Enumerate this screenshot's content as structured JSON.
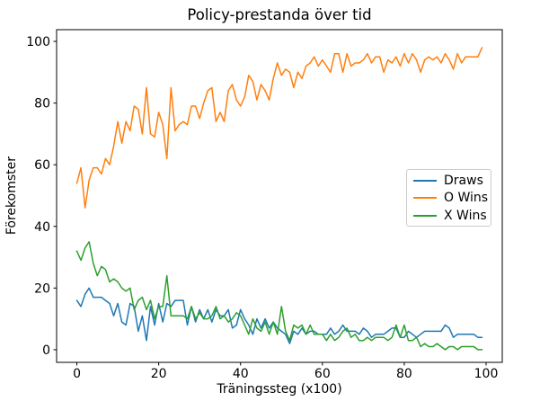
{
  "figure": {
    "background": "#ffffff",
    "text_color": "#000000",
    "spine_color": "#000000"
  },
  "chart_data": {
    "type": "line",
    "title": "Policy-prestanda över tid",
    "xlabel": "Träningssteg (x100)",
    "ylabel": "Förekomster",
    "grid": false,
    "legend_position": "center right",
    "x_ticks": [
      0,
      20,
      40,
      60,
      80,
      100
    ],
    "y_ticks": [
      0,
      20,
      40,
      60,
      80,
      100
    ],
    "xlim": [
      -4.95,
      103.95
    ],
    "ylim": [
      -4.1,
      103.8
    ],
    "x": [
      0,
      1,
      2,
      3,
      4,
      5,
      6,
      7,
      8,
      9,
      10,
      11,
      12,
      13,
      14,
      15,
      16,
      17,
      18,
      19,
      20,
      21,
      22,
      23,
      24,
      25,
      26,
      27,
      28,
      29,
      30,
      31,
      32,
      33,
      34,
      35,
      36,
      37,
      38,
      39,
      40,
      41,
      42,
      43,
      44,
      45,
      46,
      47,
      48,
      49,
      50,
      51,
      52,
      53,
      54,
      55,
      56,
      57,
      58,
      59,
      60,
      61,
      62,
      63,
      64,
      65,
      66,
      67,
      68,
      69,
      70,
      71,
      72,
      73,
      74,
      75,
      76,
      77,
      78,
      79,
      80,
      81,
      82,
      83,
      84,
      85,
      86,
      87,
      88,
      89,
      90,
      91,
      92,
      93,
      94,
      95,
      96,
      97,
      98,
      99
    ],
    "series": [
      {
        "name": "Draws",
        "color": "#1f77b4",
        "values": [
          16,
          14,
          18,
          20,
          17,
          17,
          17,
          16,
          15,
          11,
          15,
          9,
          8,
          15,
          14,
          6,
          11,
          3,
          14,
          8,
          15,
          9,
          15,
          14,
          16,
          16,
          16,
          8,
          14,
          9,
          13,
          10,
          13,
          9,
          13,
          11,
          11,
          13,
          7,
          8,
          13,
          10,
          8,
          5,
          10,
          7,
          10,
          7,
          9,
          7,
          6,
          5,
          2,
          6,
          5,
          7,
          5,
          6,
          6,
          5,
          5,
          5,
          7,
          5,
          6,
          8,
          6,
          6,
          6,
          5,
          7,
          6,
          4,
          5,
          5,
          5,
          6,
          7,
          7,
          4,
          4,
          6,
          5,
          4,
          5,
          6,
          6,
          6,
          6,
          6,
          8,
          7,
          4,
          5,
          5,
          5,
          5,
          5,
          4,
          4
        ]
      },
      {
        "name": "O Wins",
        "color": "#ff7f0e",
        "values": [
          54,
          59,
          46,
          55,
          59,
          59,
          57,
          62,
          60,
          66,
          74,
          67,
          74,
          71,
          79,
          78,
          70,
          85,
          70,
          69,
          77,
          73,
          62,
          85,
          71,
          73,
          74,
          73,
          79,
          79,
          75,
          80,
          84,
          85,
          74,
          77,
          74,
          84,
          86,
          81,
          79,
          82,
          89,
          87,
          81,
          86,
          84,
          81,
          88,
          93,
          89,
          91,
          90,
          85,
          90,
          88,
          92,
          93,
          95,
          92,
          94,
          92,
          90,
          96,
          96,
          90,
          96,
          92,
          93,
          93,
          94,
          96,
          93,
          95,
          95,
          90,
          94,
          93,
          95,
          92,
          96,
          93,
          96,
          94,
          90,
          94,
          95,
          94,
          95,
          93,
          96,
          94,
          91,
          96,
          93,
          95,
          95,
          95,
          95,
          98
        ]
      },
      {
        "name": "X Wins",
        "color": "#2ca02c",
        "values": [
          32,
          29,
          33,
          35,
          28,
          24,
          27,
          26,
          22,
          23,
          22,
          20,
          19,
          20,
          13,
          16,
          17,
          13,
          16,
          10,
          14,
          14,
          24,
          11,
          11,
          11,
          11,
          10,
          14,
          10,
          12,
          10,
          10,
          11,
          14,
          10,
          11,
          9,
          10,
          12,
          11,
          8,
          5,
          10,
          7,
          6,
          9,
          5,
          9,
          5,
          14,
          6,
          3,
          8,
          7,
          8,
          5,
          8,
          5,
          5,
          5,
          3,
          5,
          3,
          4,
          6,
          7,
          4,
          5,
          3,
          3,
          4,
          3,
          4,
          4,
          4,
          3,
          4,
          8,
          4,
          8,
          3,
          3,
          4,
          1,
          2,
          1,
          1,
          2,
          1,
          0,
          1,
          1,
          0,
          1,
          1,
          1,
          1,
          0,
          0
        ]
      }
    ]
  }
}
